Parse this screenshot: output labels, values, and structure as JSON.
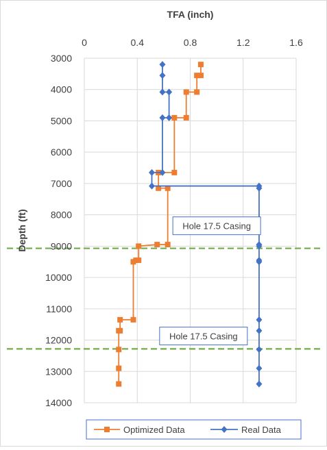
{
  "chart_data": {
    "type": "line",
    "title": "",
    "xlabel": "TFA (inch)",
    "ylabel": "Depth (ft)",
    "x_axis_position": "top",
    "y_axis_inverted": true,
    "xlim": [
      0,
      1.6
    ],
    "ylim": [
      3000,
      14000
    ],
    "x_ticks": [
      "0",
      "0.4",
      "0.8",
      "1.2",
      "1.6"
    ],
    "y_ticks": [
      "3000",
      "4000",
      "5000",
      "6000",
      "7000",
      "8000",
      "9000",
      "10000",
      "11000",
      "12000",
      "13000",
      "14000"
    ],
    "grid": {
      "x": true,
      "y": true
    },
    "legend_position": "bottom",
    "series": [
      {
        "name": "Optimized Data",
        "color": "#ED7D31",
        "marker": "square",
        "points": [
          [
            0.88,
            3200
          ],
          [
            0.88,
            3550
          ],
          [
            0.85,
            3550
          ],
          [
            0.85,
            4080
          ],
          [
            0.77,
            4080
          ],
          [
            0.77,
            4900
          ],
          [
            0.68,
            4900
          ],
          [
            0.68,
            6650
          ],
          [
            0.56,
            6650
          ],
          [
            0.56,
            7150
          ],
          [
            0.63,
            7150
          ],
          [
            0.63,
            8950
          ],
          [
            0.55,
            8950
          ],
          [
            0.41,
            9000
          ],
          [
            0.41,
            9450
          ],
          [
            0.39,
            9450
          ],
          [
            0.37,
            9500
          ],
          [
            0.37,
            11350
          ],
          [
            0.27,
            11350
          ],
          [
            0.27,
            11700
          ],
          [
            0.26,
            11700
          ],
          [
            0.26,
            12300
          ],
          [
            0.26,
            12900
          ],
          [
            0.26,
            13400
          ]
        ]
      },
      {
        "name": "Real Data",
        "color": "#4472C4",
        "marker": "diamond",
        "points": [
          [
            0.59,
            3200
          ],
          [
            0.59,
            3550
          ],
          [
            0.59,
            4080
          ],
          [
            0.64,
            4080
          ],
          [
            0.64,
            4900
          ],
          [
            0.59,
            4900
          ],
          [
            0.59,
            6650
          ],
          [
            0.51,
            6650
          ],
          [
            0.51,
            7080
          ],
          [
            1.32,
            7080
          ],
          [
            1.32,
            7150
          ],
          [
            1.32,
            8950
          ],
          [
            1.32,
            9000
          ],
          [
            1.32,
            9450
          ],
          [
            1.32,
            9500
          ],
          [
            1.32,
            11350
          ],
          [
            1.32,
            11700
          ],
          [
            1.32,
            12300
          ],
          [
            1.32,
            12900
          ],
          [
            1.32,
            13400
          ]
        ]
      }
    ],
    "reference_lines": [
      {
        "depth": 9070,
        "color": "#70AD47",
        "style": "dashed"
      },
      {
        "depth": 12280,
        "color": "#70AD47",
        "style": "dashed"
      }
    ],
    "annotations": [
      {
        "text": "Hole 17.5 Casing",
        "x": 1.0,
        "y": 8350,
        "border_color": "#4472C4"
      },
      {
        "text": "Hole 17.5 Casing",
        "x": 0.9,
        "y": 11870,
        "border_color": "#4472C4"
      }
    ]
  }
}
